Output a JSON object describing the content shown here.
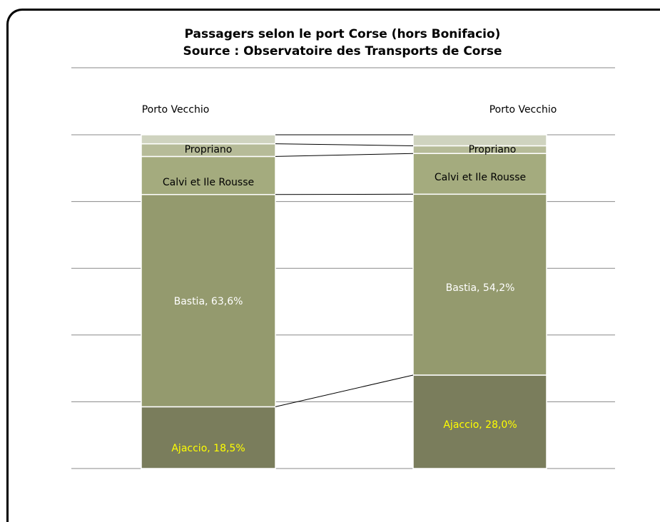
{
  "chart_data": {
    "type": "bar",
    "stacked": true,
    "percent_stacked": true,
    "title_line1": "Passagers selon le port Corse (hors Bonifacio)",
    "title_line2": "Source : Observatoire des Transports de Corse",
    "categories": [
      "",
      ""
    ],
    "grid": true,
    "legend": "none",
    "series": [
      {
        "name": "Ajaccio",
        "values": [
          18.5,
          28.0
        ],
        "labels": [
          "Ajaccio, 18,5%",
          "Ajaccio, 28,0%"
        ],
        "color": "#7a7d5c",
        "label_color": "#ffff00"
      },
      {
        "name": "Bastia",
        "values": [
          63.6,
          54.2
        ],
        "labels": [
          "Bastia, 63,6%",
          "Bastia, 54,2%"
        ],
        "color": "#949a6e",
        "label_color": "#ffffff"
      },
      {
        "name": "Calvi et Ile Rousse",
        "values": [
          11.4,
          12.2
        ],
        "labels": [
          "Calvi et Ile Rousse",
          "Calvi et Ile Rousse"
        ],
        "color": "#a4ab7e",
        "label_color": "#000000"
      },
      {
        "name": "Propriano",
        "values": [
          3.8,
          2.3
        ],
        "labels": [
          "Propriano",
          "Propriano"
        ],
        "color": "#b6bb98",
        "label_color": "#000000"
      },
      {
        "name": "Porto Vecchio",
        "values": [
          2.7,
          3.3
        ],
        "labels": [
          "Porto Vecchio",
          "Porto Vecchio"
        ],
        "color": "#cfd3bf",
        "label_color": "#000000"
      }
    ]
  }
}
